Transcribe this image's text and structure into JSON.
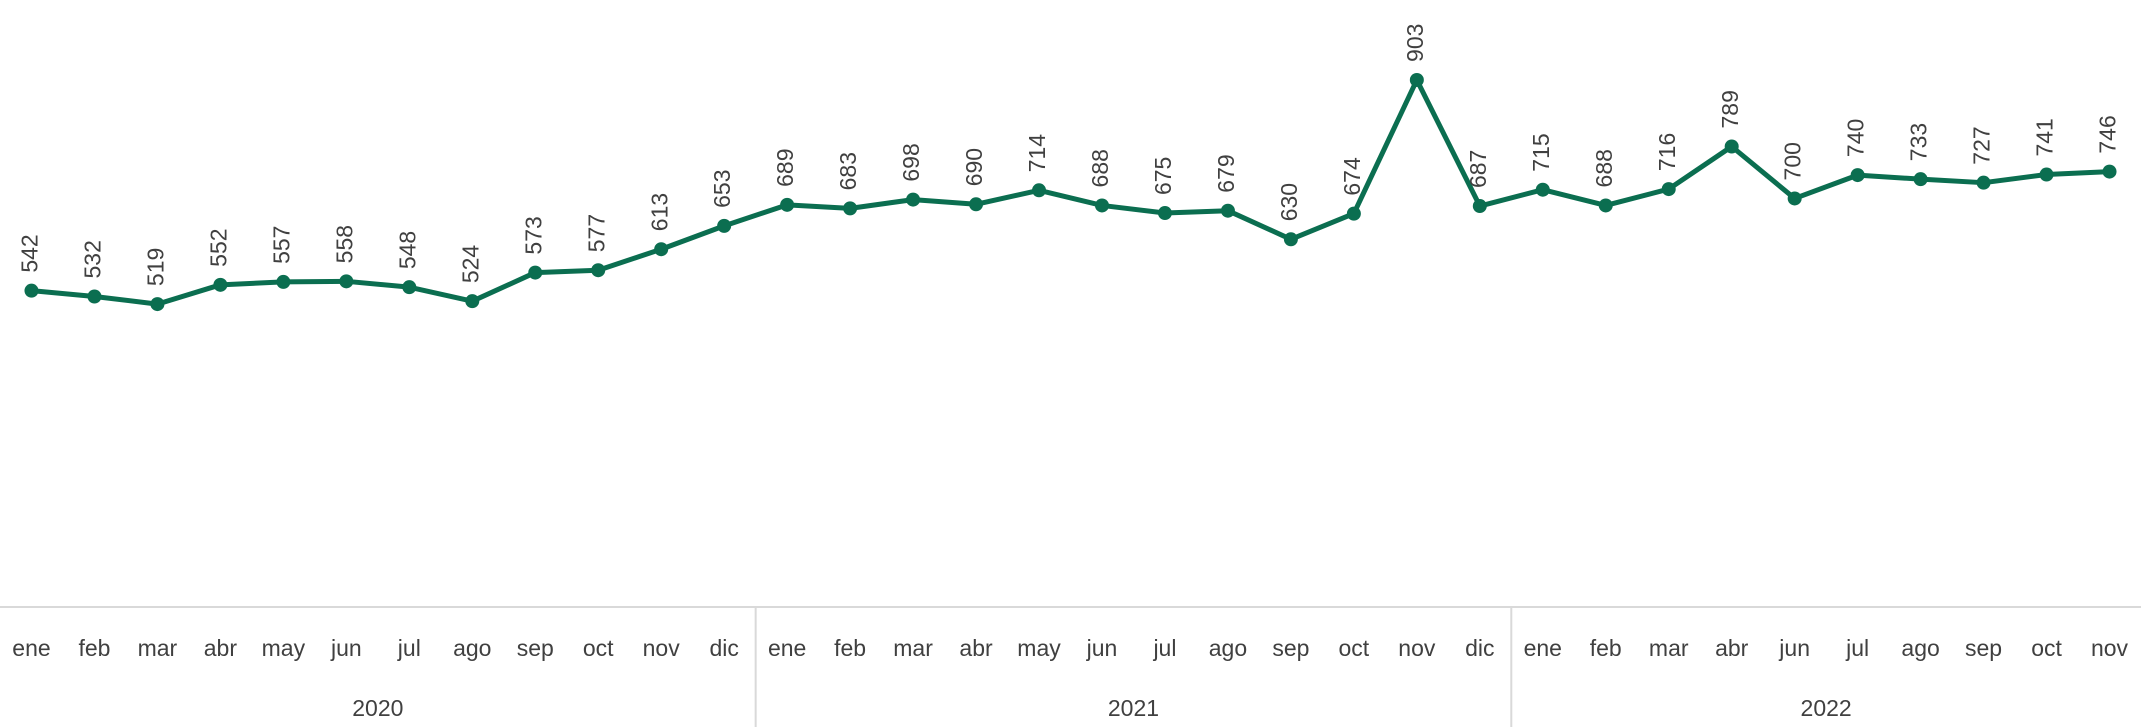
{
  "chart_data": {
    "type": "line",
    "color": "#0b6e50",
    "ylim": [
      0,
      1040
    ],
    "groups": [
      {
        "label": "2020",
        "categories": [
          "ene",
          "feb",
          "mar",
          "abr",
          "may",
          "jun",
          "jul",
          "ago",
          "sep",
          "oct",
          "nov",
          "dic"
        ],
        "values": [
          542,
          532,
          519,
          552,
          557,
          558,
          548,
          524,
          573,
          577,
          613,
          653
        ]
      },
      {
        "label": "2021",
        "categories": [
          "ene",
          "feb",
          "mar",
          "abr",
          "may",
          "jun",
          "jul",
          "ago",
          "sep",
          "oct",
          "nov",
          "dic"
        ],
        "values": [
          689,
          683,
          698,
          690,
          714,
          688,
          675,
          679,
          630,
          674,
          903,
          687
        ]
      },
      {
        "label": "2022",
        "categories": [
          "ene",
          "feb",
          "mar",
          "abr",
          "jun",
          "jul",
          "ago",
          "sep",
          "oct",
          "nov"
        ],
        "values": [
          715,
          688,
          716,
          789,
          700,
          740,
          733,
          727,
          741,
          746
        ]
      }
    ]
  }
}
